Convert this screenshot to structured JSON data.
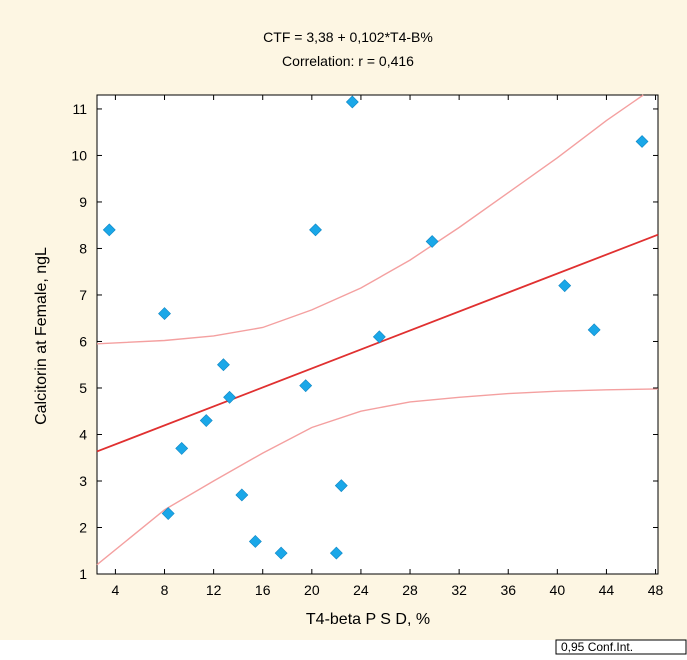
{
  "background_color": "#fdf6e3",
  "point_color": "#1aa7e8",
  "fit_color": "#e03030",
  "ci_color": "#f4a0a0",
  "chart_data": {
    "type": "scatter",
    "title": "CTF = 3,38 + 0,102*T4-B%",
    "subtitle": "Correlation: r = 0,416",
    "xlabel": "T4-beta P S D, %",
    "ylabel": "Calcitorin at Female, ngL",
    "xlim": [
      2.5,
      48.2
    ],
    "ylim": [
      1,
      11.3
    ],
    "x_ticks": [
      "4",
      "8",
      "12",
      "16",
      "20",
      "24",
      "28",
      "32",
      "36",
      "40",
      "44",
      "48"
    ],
    "x_tick_values": [
      4,
      8,
      12,
      16,
      20,
      24,
      28,
      32,
      36,
      40,
      44,
      48
    ],
    "y_ticks": [
      "1",
      "2",
      "3",
      "4",
      "5",
      "6",
      "7",
      "8",
      "9",
      "10",
      "11"
    ],
    "y_tick_values": [
      1,
      2,
      3,
      4,
      5,
      6,
      7,
      8,
      9,
      10,
      11
    ],
    "grid": false,
    "points": [
      {
        "x": 3.5,
        "y": 8.4
      },
      {
        "x": 8.0,
        "y": 6.6
      },
      {
        "x": 8.3,
        "y": 2.3
      },
      {
        "x": 9.4,
        "y": 3.7
      },
      {
        "x": 11.4,
        "y": 4.3
      },
      {
        "x": 12.8,
        "y": 5.5
      },
      {
        "x": 13.3,
        "y": 4.8
      },
      {
        "x": 14.3,
        "y": 2.7
      },
      {
        "x": 15.4,
        "y": 1.7
      },
      {
        "x": 17.5,
        "y": 1.45
      },
      {
        "x": 19.5,
        "y": 5.05
      },
      {
        "x": 20.3,
        "y": 8.4
      },
      {
        "x": 22.0,
        "y": 1.45
      },
      {
        "x": 22.4,
        "y": 2.9
      },
      {
        "x": 23.3,
        "y": 11.15
      },
      {
        "x": 25.5,
        "y": 6.1
      },
      {
        "x": 29.8,
        "y": 8.15
      },
      {
        "x": 40.6,
        "y": 7.2
      },
      {
        "x": 43.0,
        "y": 6.25
      },
      {
        "x": 46.9,
        "y": 10.3
      }
    ],
    "fit": {
      "intercept": 3.38,
      "slope": 0.102
    },
    "ci_upper": [
      [
        2.5,
        5.95
      ],
      [
        8,
        6.02
      ],
      [
        12,
        6.12
      ],
      [
        16,
        6.3
      ],
      [
        20,
        6.68
      ],
      [
        24,
        7.15
      ],
      [
        28,
        7.75
      ],
      [
        32,
        8.45
      ],
      [
        36,
        9.2
      ],
      [
        40,
        9.95
      ],
      [
        44,
        10.75
      ],
      [
        47,
        11.3
      ]
    ],
    "ci_lower": [
      [
        2.5,
        1.2
      ],
      [
        8,
        2.38
      ],
      [
        12,
        3.0
      ],
      [
        16,
        3.6
      ],
      [
        20,
        4.15
      ],
      [
        24,
        4.5
      ],
      [
        28,
        4.7
      ],
      [
        32,
        4.8
      ],
      [
        36,
        4.88
      ],
      [
        40,
        4.93
      ],
      [
        44,
        4.96
      ],
      [
        48.2,
        4.98
      ]
    ],
    "legend": {
      "label": "0,95 Conf.Int.",
      "placement": "bottom-right"
    }
  }
}
